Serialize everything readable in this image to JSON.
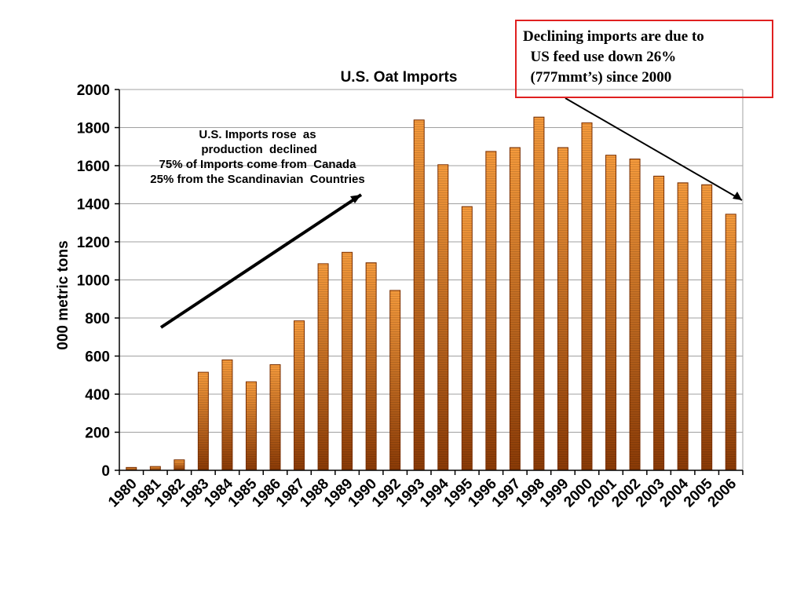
{
  "chart_data": {
    "type": "bar",
    "title": "U.S. Oat Imports",
    "xlabel": "",
    "ylabel": "000 metric tons",
    "ylim": [
      0,
      2000
    ],
    "yticks": [
      0,
      200,
      400,
      600,
      800,
      1000,
      1200,
      1400,
      1600,
      1800,
      2000
    ],
    "grid": true,
    "categories": [
      "1980",
      "1981",
      "1982",
      "1983",
      "1984",
      "1985",
      "1986",
      "1987",
      "1988",
      "1989",
      "1990",
      "1992",
      "1993",
      "1994",
      "1995",
      "1996",
      "1997",
      "1998",
      "1999",
      "2000",
      "2001",
      "2002",
      "2003",
      "2004",
      "2005",
      "2006"
    ],
    "values": [
      15,
      20,
      55,
      515,
      580,
      465,
      555,
      785,
      1085,
      1145,
      1090,
      945,
      1840,
      1605,
      1385,
      1675,
      1695,
      1855,
      1695,
      1825,
      1655,
      1635,
      1545,
      1510,
      1500,
      1345
    ],
    "colors": {
      "bar_light": "#f59a3c",
      "bar_dark": "#8a3a06",
      "outline": "#7a2e00",
      "callout_border": "#e02020"
    },
    "annotations": {
      "callout": "Declining imports are due to\n  US feed use down 26%\n  (777mmt’s) since 2000",
      "note": "U.S. Imports rose  as\n production  declined\n75% of Imports come from  Canada\n25% from the Scandinavian  Countries"
    }
  }
}
